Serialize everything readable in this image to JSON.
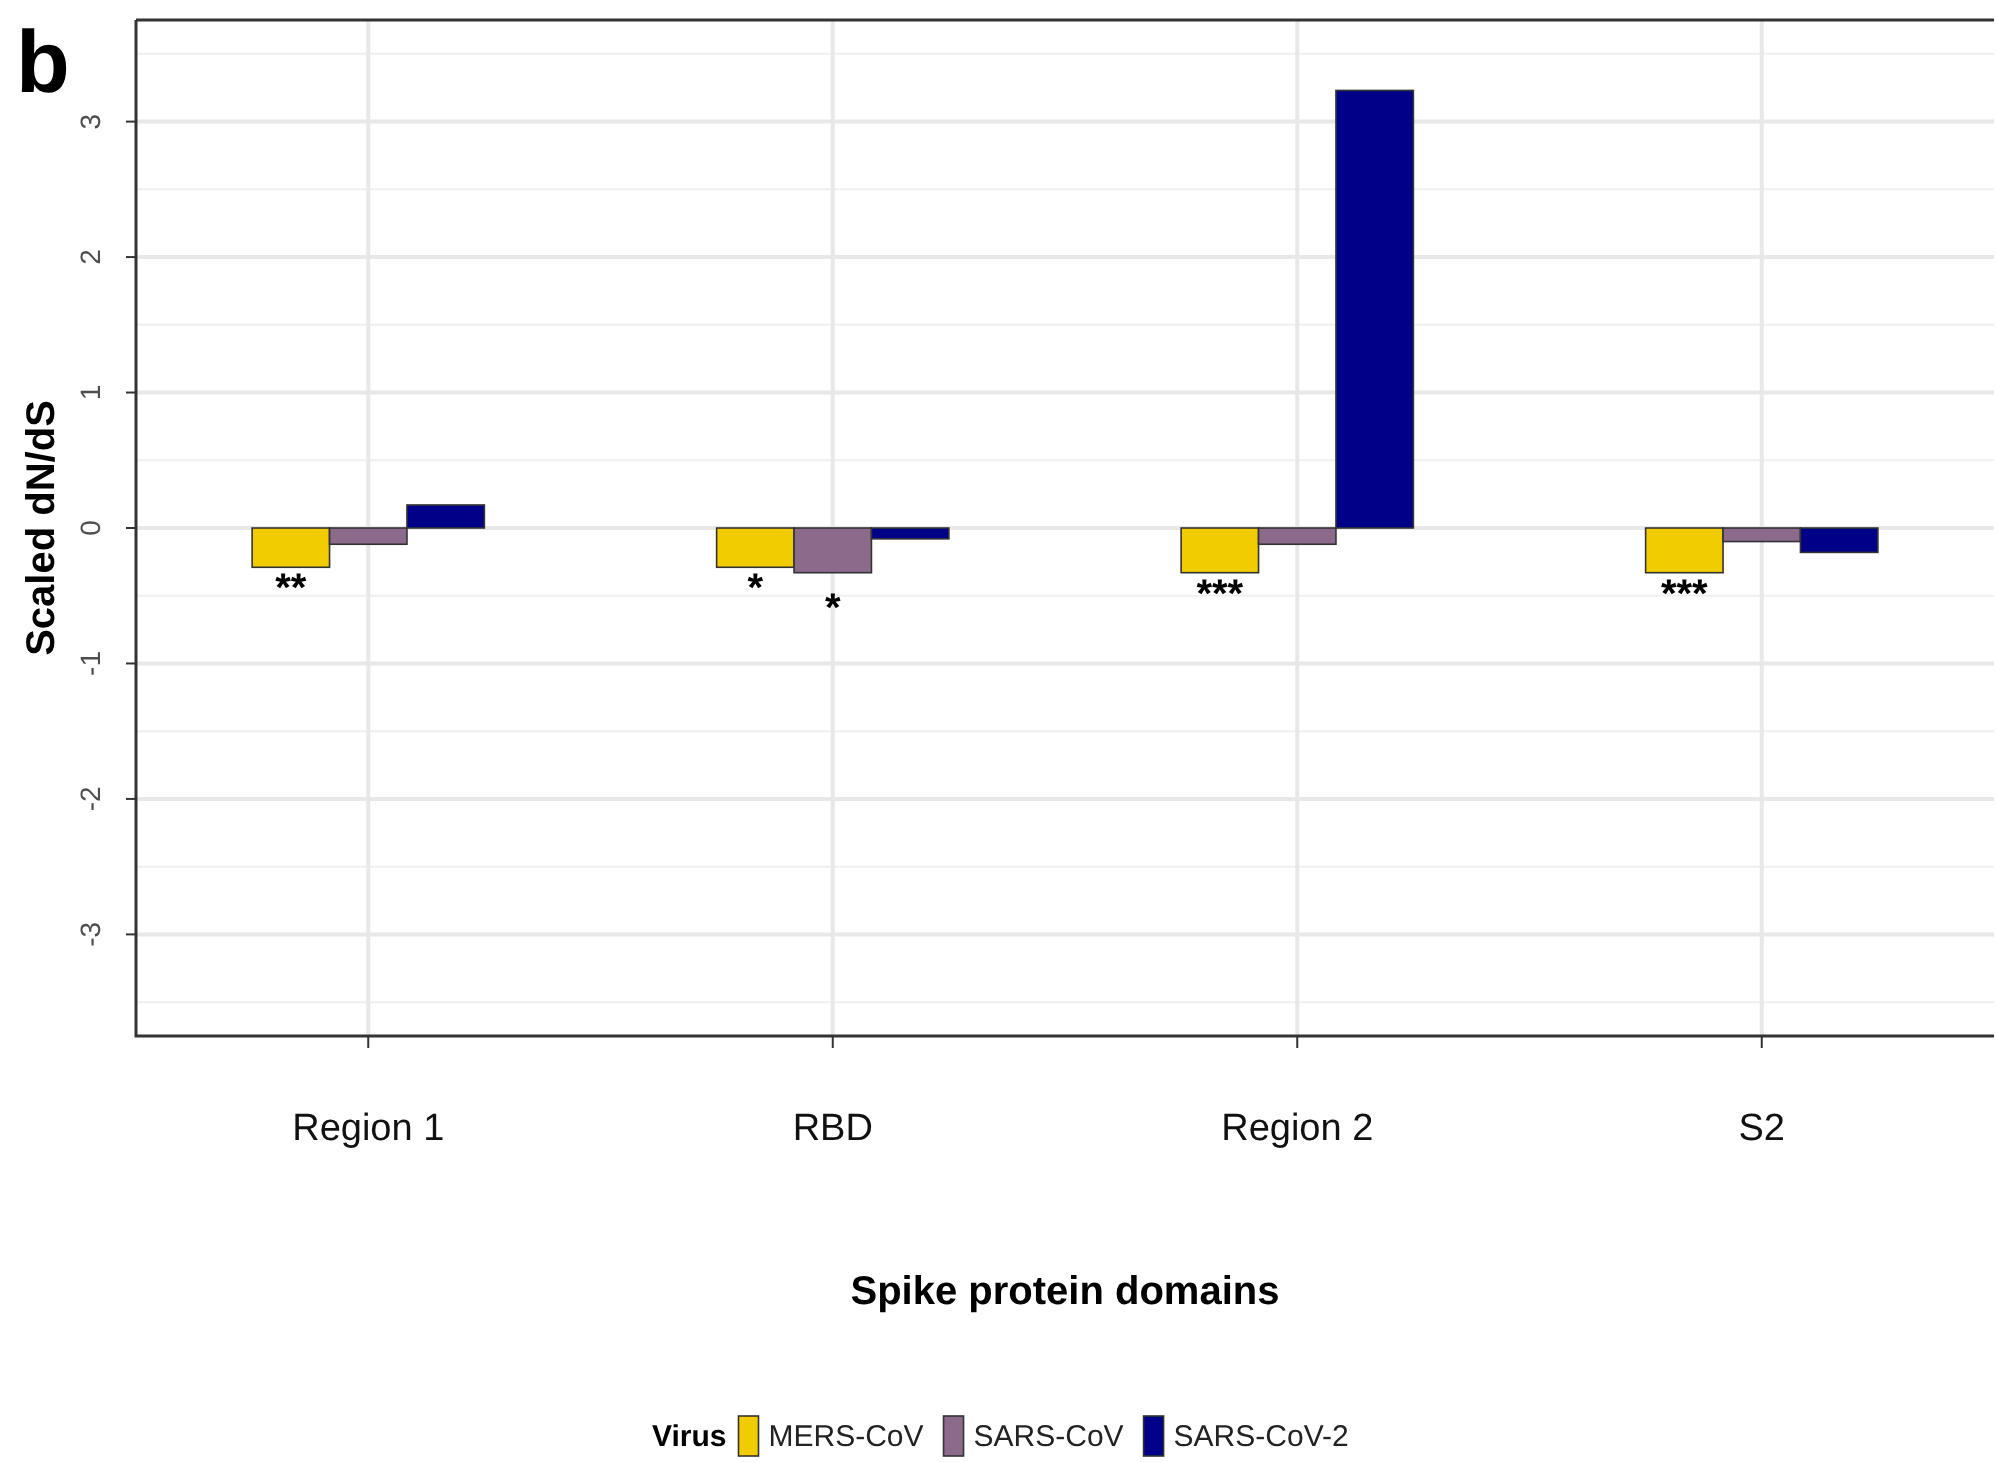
{
  "chart_data": {
    "type": "bar",
    "xlabel": "Spike protein domains",
    "ylabel": "Scaled dN/dS",
    "legend_title": "Virus",
    "categories": [
      "Region 1",
      "RBD",
      "Region 2",
      "S2"
    ],
    "series": [
      {
        "name": "MERS-CoV",
        "color": "#f0cc00",
        "values": [
          -0.29,
          -0.29,
          -0.33,
          -0.33
        ]
      },
      {
        "name": "SARS-CoV",
        "color": "#8c6a8c",
        "values": [
          -0.12,
          -0.33,
          -0.12,
          -0.1
        ]
      },
      {
        "name": "SARS-CoV-2",
        "color": "#000088",
        "values": [
          0.17,
          -0.08,
          3.23,
          -0.18
        ]
      }
    ],
    "ylim": [
      -3.75,
      3.75
    ],
    "yticks": [
      -3,
      -2,
      -1,
      0,
      1,
      2,
      3
    ],
    "grid": true,
    "legend": "bottom",
    "annotations": [
      "b",
      "**",
      "*",
      "*",
      "***",
      "***"
    ]
  }
}
